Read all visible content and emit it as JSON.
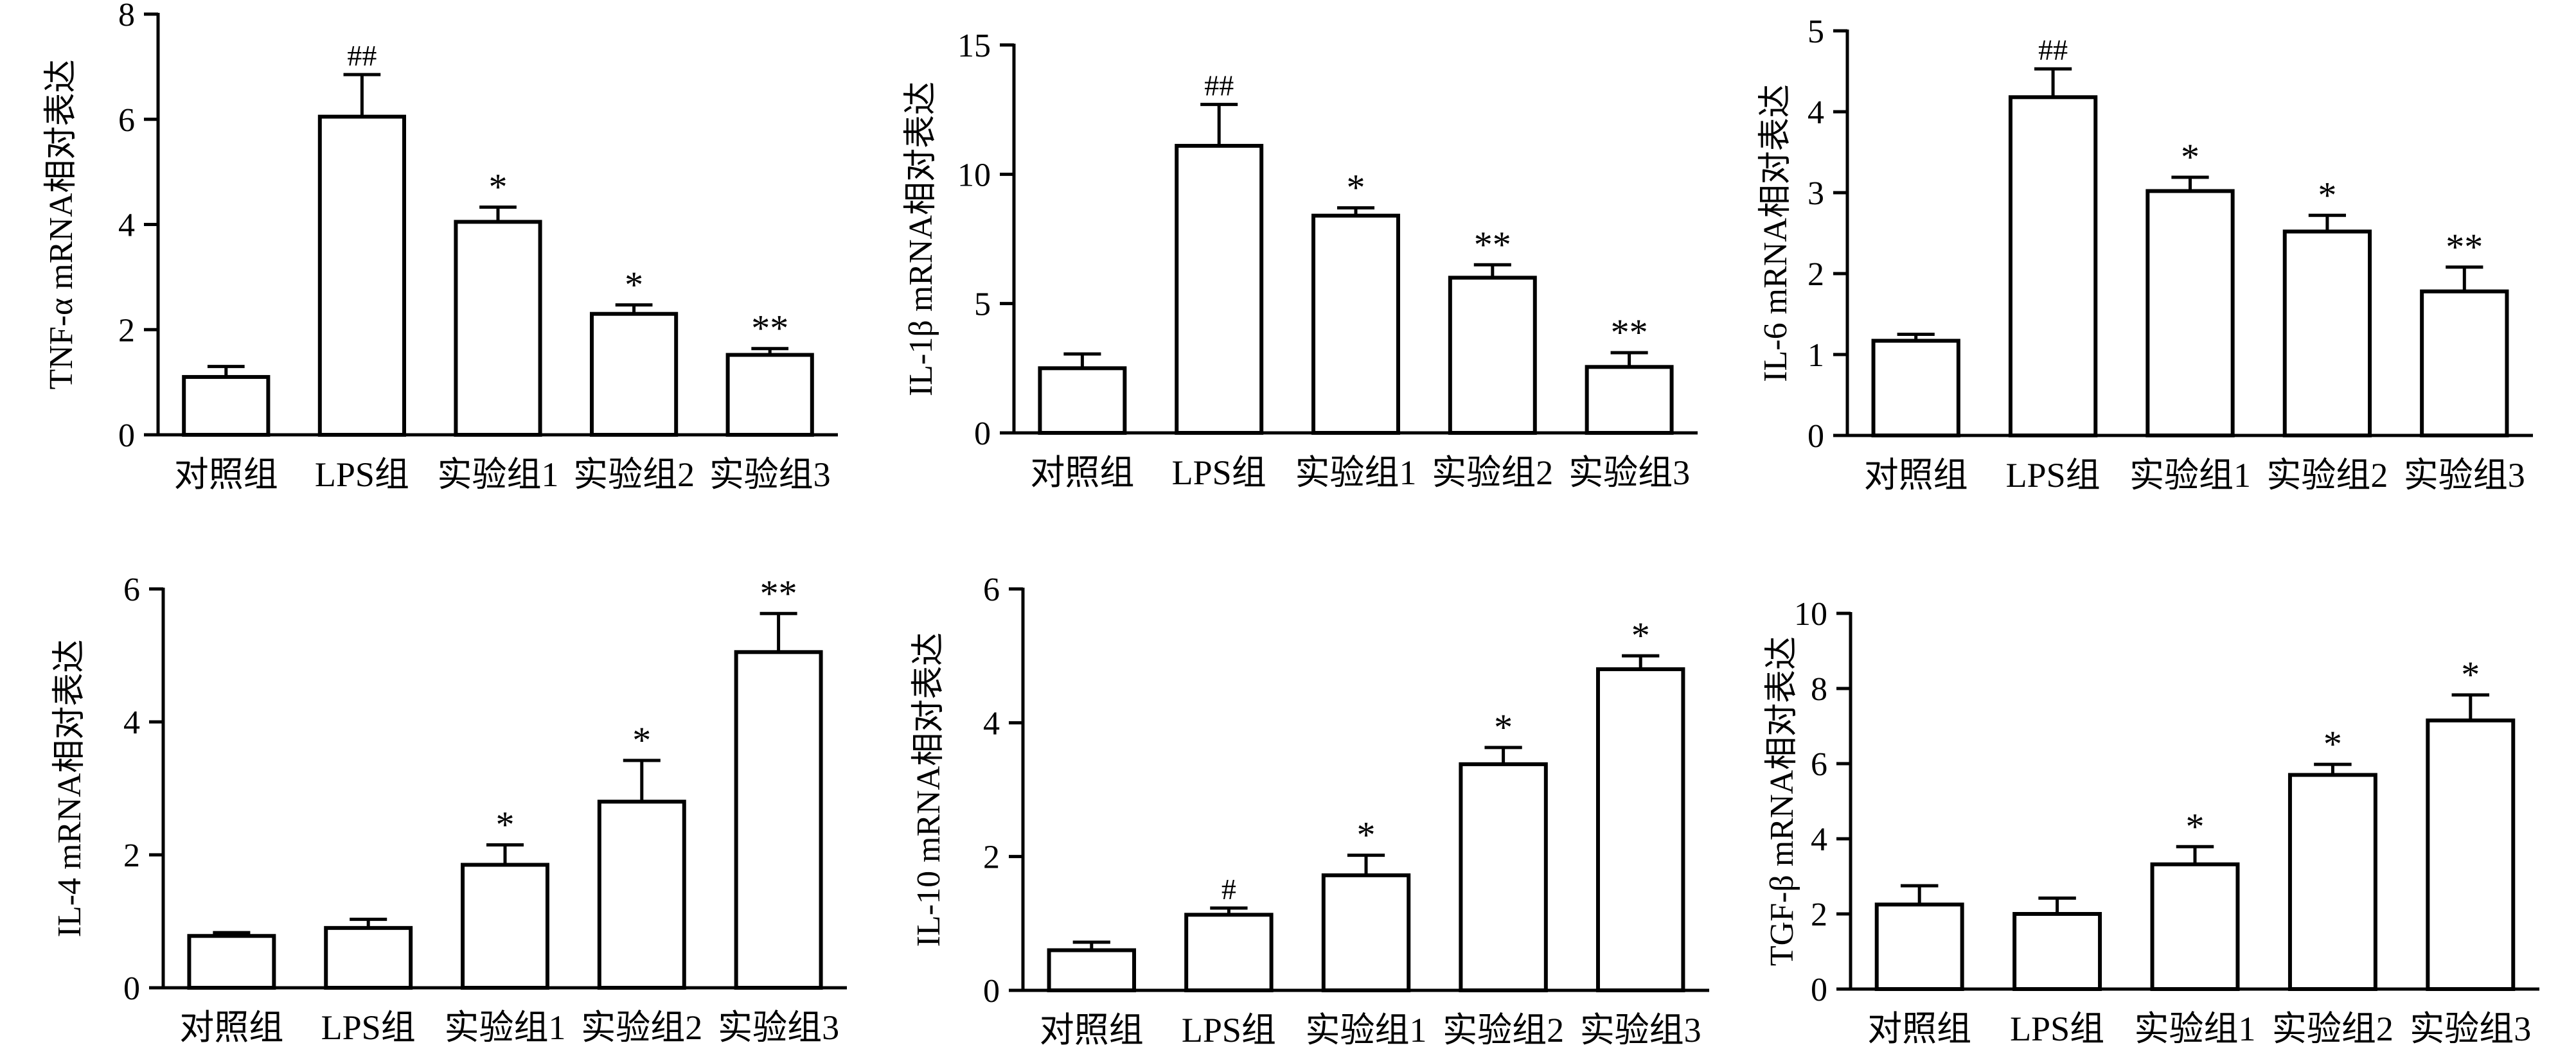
{
  "chart_data": [
    {
      "type": "bar",
      "ylabel": "TNF-α mRNA相对表达",
      "categories": [
        "对照组",
        "LPS组",
        "实验组1",
        "实验组2",
        "实验组3"
      ],
      "values": [
        1.1,
        6.05,
        4.05,
        2.3,
        1.52
      ],
      "errors": [
        0.2,
        0.8,
        0.28,
        0.17,
        0.12
      ],
      "annotations": [
        "",
        "##",
        "*",
        "*",
        "**"
      ],
      "ylim": [
        0,
        8
      ],
      "yticks": [
        0,
        2,
        4,
        6,
        8
      ]
    },
    {
      "type": "bar",
      "ylabel": "IL-1β mRNA相对表达",
      "categories": [
        "对照组",
        "LPS组",
        "实验组1",
        "实验组2",
        "实验组3"
      ],
      "values": [
        2.5,
        11.1,
        8.4,
        6.0,
        2.55
      ],
      "errors": [
        0.55,
        1.6,
        0.3,
        0.5,
        0.55
      ],
      "annotations": [
        "",
        "##",
        "*",
        "**",
        "**"
      ],
      "ylim": [
        0,
        15
      ],
      "yticks": [
        0,
        5,
        10,
        15
      ]
    },
    {
      "type": "bar",
      "ylabel": "IL-6 mRNA相对表达",
      "categories": [
        "对照组",
        "LPS组",
        "实验组1",
        "实验组2",
        "实验组3"
      ],
      "values": [
        1.17,
        4.18,
        3.02,
        2.52,
        1.78
      ],
      "errors": [
        0.08,
        0.35,
        0.17,
        0.2,
        0.3
      ],
      "annotations": [
        "",
        "##",
        "*",
        "*",
        "**"
      ],
      "ylim": [
        0,
        5
      ],
      "yticks": [
        0,
        1,
        2,
        3,
        4,
        5
      ]
    },
    {
      "type": "bar",
      "ylabel": "IL-4 mRNA相对表达",
      "categories": [
        "对照组",
        "LPS组",
        "实验组1",
        "实验组2",
        "实验组3"
      ],
      "values": [
        0.78,
        0.9,
        1.85,
        2.8,
        5.05
      ],
      "errors": [
        0.05,
        0.13,
        0.3,
        0.62,
        0.58
      ],
      "annotations": [
        "",
        "",
        "*",
        "*",
        "**"
      ],
      "ylim": [
        0,
        6
      ],
      "yticks": [
        0,
        2,
        4,
        6
      ]
    },
    {
      "type": "bar",
      "ylabel": "IL-10 mRNA相对表达",
      "categories": [
        "对照组",
        "LPS组",
        "实验组1",
        "实验组2",
        "实验组3"
      ],
      "values": [
        0.6,
        1.13,
        1.72,
        3.38,
        4.8
      ],
      "errors": [
        0.12,
        0.1,
        0.3,
        0.25,
        0.2
      ],
      "annotations": [
        "",
        "#",
        "*",
        "*",
        "*"
      ],
      "ylim": [
        0,
        6
      ],
      "yticks": [
        0,
        2,
        4,
        6
      ]
    },
    {
      "type": "bar",
      "ylabel": "TGF-β mRNA相对表达",
      "categories": [
        "对照组",
        "LPS组",
        "实验组1",
        "实验组2",
        "实验组3"
      ],
      "values": [
        2.25,
        2.0,
        3.32,
        5.7,
        7.15
      ],
      "errors": [
        0.5,
        0.42,
        0.47,
        0.28,
        0.68
      ],
      "annotations": [
        "",
        "",
        "*",
        "*",
        "*"
      ],
      "ylim": [
        0,
        10
      ],
      "yticks": [
        0,
        2,
        4,
        6,
        8,
        10
      ]
    }
  ]
}
